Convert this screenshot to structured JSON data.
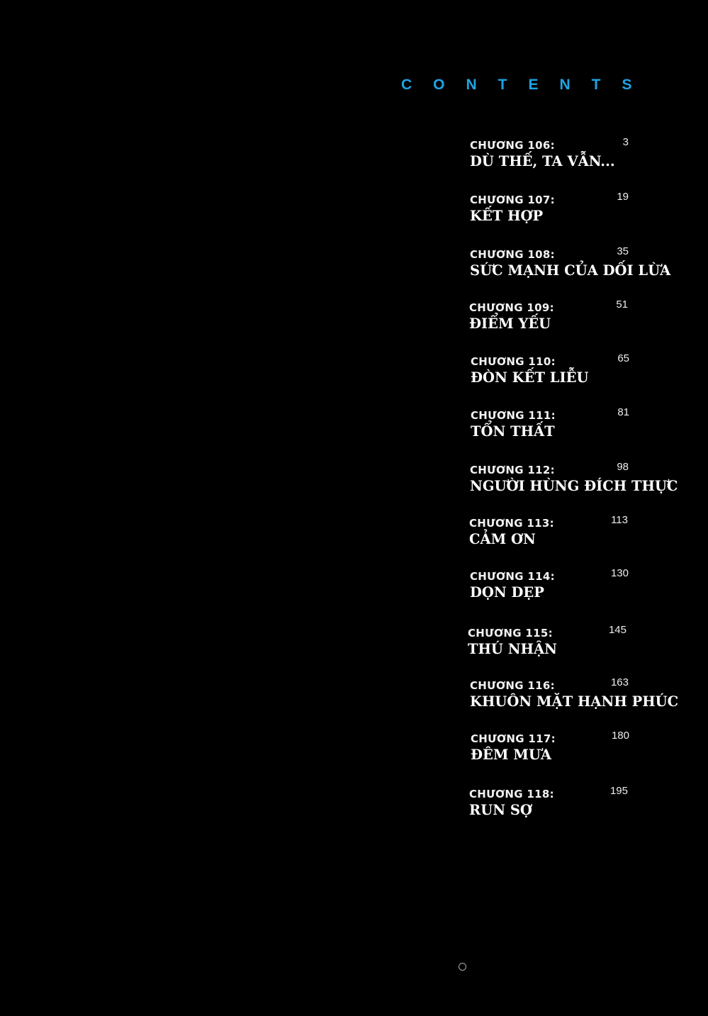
{
  "heading": "CONTENTS",
  "accent_color": "#1ea4e4",
  "entries": [
    {
      "chapter": "CHƯƠNG 106:",
      "title": "DÙ THẾ, TA VẪN...",
      "page": "3"
    },
    {
      "chapter": "CHƯƠNG 107:",
      "title": "KẾT HỢP",
      "page": "19"
    },
    {
      "chapter": "CHƯƠNG 108:",
      "title": "SỨC MẠNH CỦA DỐI LỪA",
      "page": "35"
    },
    {
      "chapter": "CHƯƠNG 109:",
      "title": "ĐIỂM YẾU",
      "page": "51"
    },
    {
      "chapter": "CHƯƠNG 110:",
      "title": "ĐÒN KẾT LIỄU",
      "page": "65"
    },
    {
      "chapter": "CHƯƠNG 111:",
      "title": "TỔN THẤT",
      "page": "81"
    },
    {
      "chapter": "CHƯƠNG 112:",
      "title": "NGƯỜI HÙNG ĐÍCH THỰC",
      "page": "98"
    },
    {
      "chapter": "CHƯƠNG 113:",
      "title": "CẢM ƠN",
      "page": "113"
    },
    {
      "chapter": "CHƯƠNG 114:",
      "title": "DỌN DẸP",
      "page": "130"
    },
    {
      "chapter": "CHƯƠNG 115:",
      "title": "THÚ NHẬN",
      "page": "145"
    },
    {
      "chapter": "CHƯƠNG 116:",
      "title": "KHUÔN MẶT HẠNH PHÚC",
      "page": "163"
    },
    {
      "chapter": "CHƯƠNG 117:",
      "title": "ĐÊM MƯA",
      "page": "180"
    },
    {
      "chapter": "CHƯƠNG 118:",
      "title": "RUN SỢ",
      "page": "195"
    }
  ]
}
